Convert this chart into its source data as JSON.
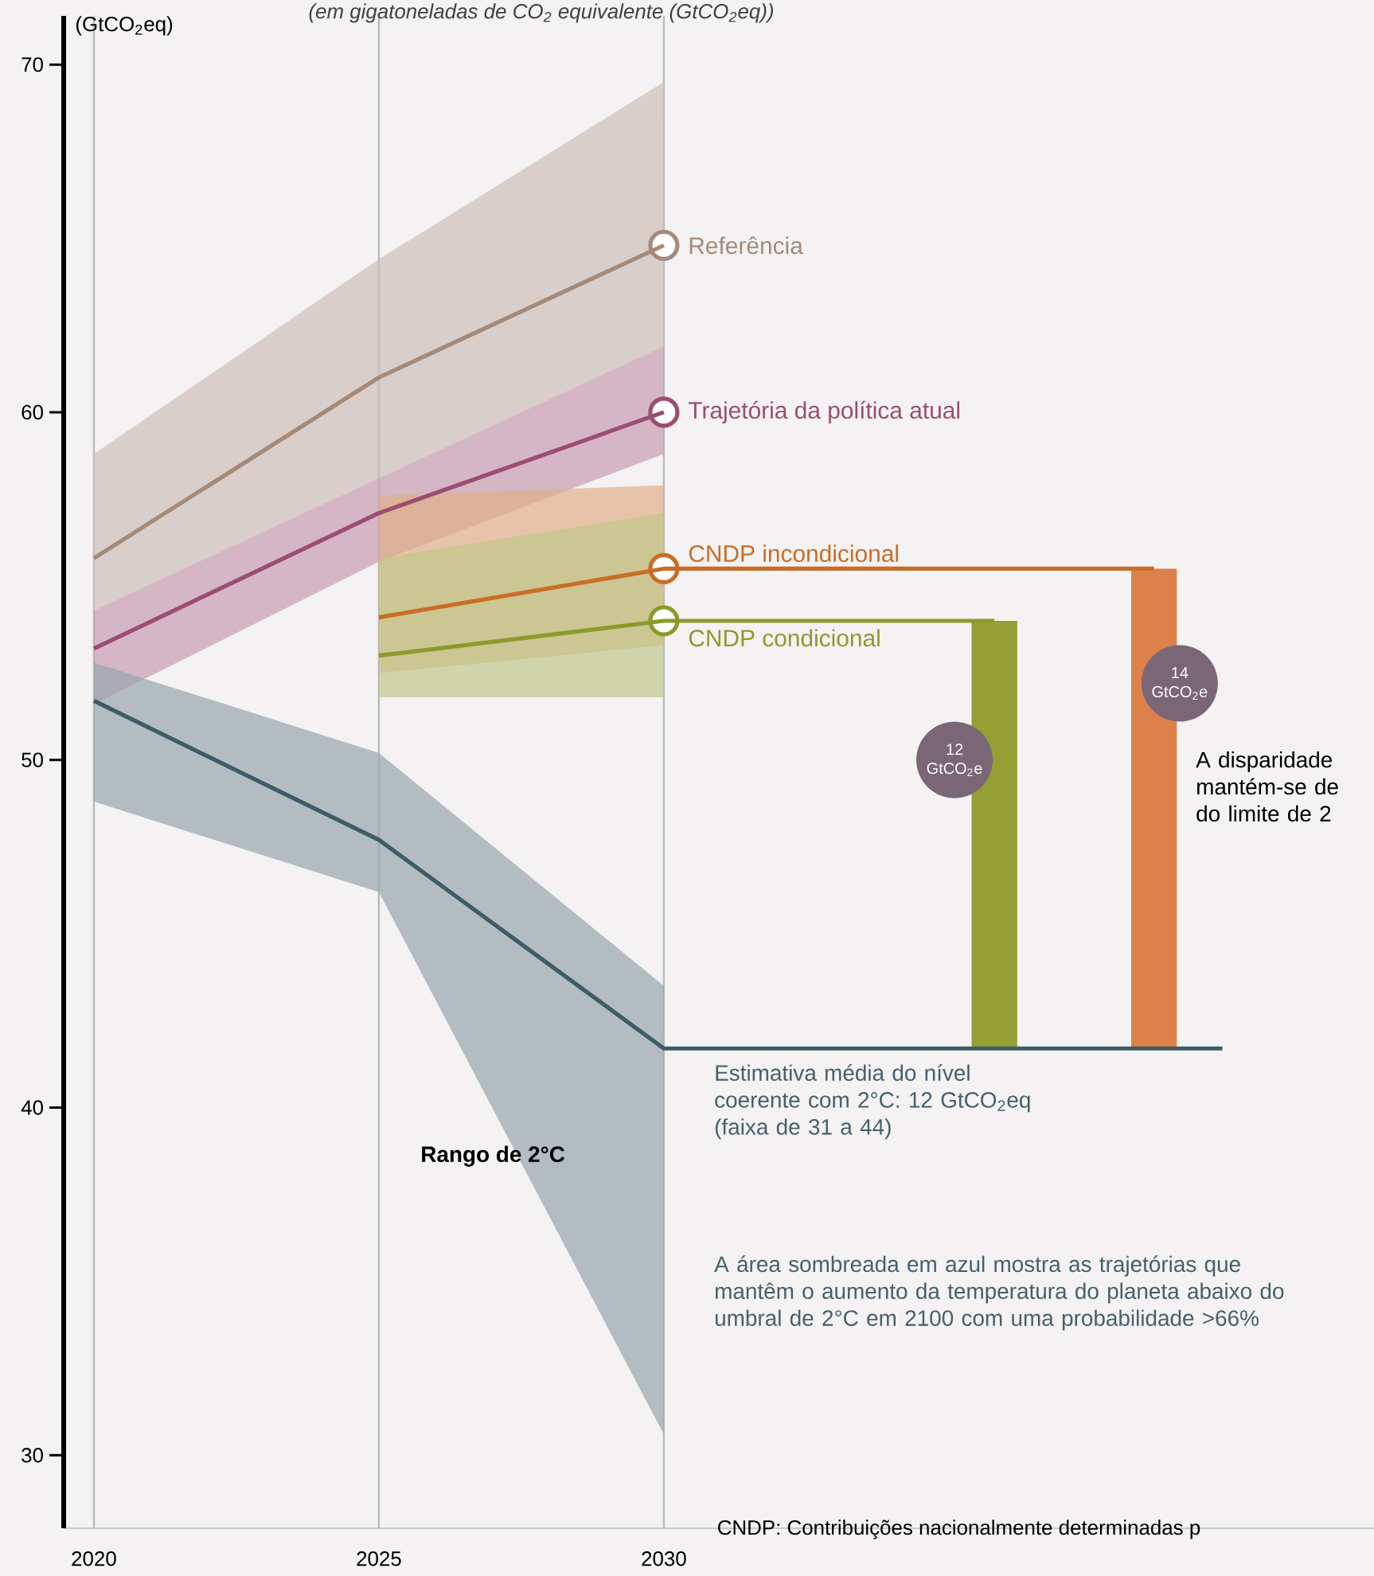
{
  "chart_data": {
    "type": "line",
    "subtitle": "(em gigatoneladas de CO$_{2}$ equivalente (GtCO$_{2}$eq))",
    "ylabel": "(GtCO$_{2}$eq)",
    "xlim": [
      2019.47,
      2042.46
    ],
    "ylim": [
      27.9,
      71.4
    ],
    "xticks": [
      2020,
      2025,
      2030
    ],
    "yticks": [
      30,
      40,
      50,
      60,
      70
    ],
    "grid": true,
    "series": [
      {
        "name": "Referência",
        "color": "#a48a7a",
        "x": [
          2020,
          2025,
          2030
        ],
        "values": [
          55.8,
          61.0,
          64.8
        ],
        "lower": [
          54.3,
          58.1,
          61.9
        ],
        "upper": [
          58.8,
          64.4,
          69.5
        ]
      },
      {
        "name": "Trajetória da política atual",
        "color": "#9b4d72",
        "x": [
          2020,
          2025,
          2030
        ],
        "values": [
          53.2,
          57.1,
          60.0
        ],
        "lower": [
          51.6,
          55.7,
          58.8
        ],
        "upper": [
          54.3,
          58.1,
          61.9
        ]
      },
      {
        "name": "CNDP incondicional",
        "color": "#c96d28",
        "x": [
          2025,
          2030,
          2038.6
        ],
        "values": [
          54.1,
          55.5,
          55.5
        ],
        "lower": [
          52.5,
          53.3,
          null
        ],
        "upper": [
          57.6,
          57.9,
          null
        ]
      },
      {
        "name": "CNDP condicional",
        "color": "#8c9a2b",
        "x": [
          2025,
          2030,
          2035.8
        ],
        "values": [
          53.0,
          54.0,
          54.0
        ],
        "lower": [
          51.8,
          51.8,
          null
        ],
        "upper": [
          55.8,
          57.1,
          null
        ]
      },
      {
        "color": "#3e5b66",
        "x": [
          2020,
          2025,
          2030,
          2039.8
        ],
        "values": [
          51.7,
          47.7,
          41.7,
          41.7
        ],
        "lower": [
          48.8,
          46.2,
          30.6,
          null
        ],
        "upper": [
          52.8,
          50.2,
          43.5,
          null
        ]
      },
      {
        "type": "bar",
        "color": "#95a032",
        "x": [
          2035.8
        ],
        "base": [
          41.7
        ],
        "values": [
          12.3
        ]
      },
      {
        "type": "bar",
        "color": "#dd814a",
        "x": [
          2038.6
        ],
        "base": [
          41.7
        ],
        "values": [
          13.8
        ]
      }
    ],
    "annotations": [
      "12 GtCO$_{2}$e",
      "14 GtCO$_{2}$e",
      "Rango de 2°C",
      "Estimativa média do nível coerente com 2°C: 12 GtCO$_{2}$eq (faixa de 31 a 44)",
      "A área sombreada em azul mostra as trajetórias que mantêm o aumento da temperatura do planeta abaixo do umbral de 2°C em 2100 com uma probabilidade >66%",
      "A disparidade mantém-se de do limite de 2",
      "CNDP: Contribuições nacionalmente determinadas p"
    ]
  }
}
